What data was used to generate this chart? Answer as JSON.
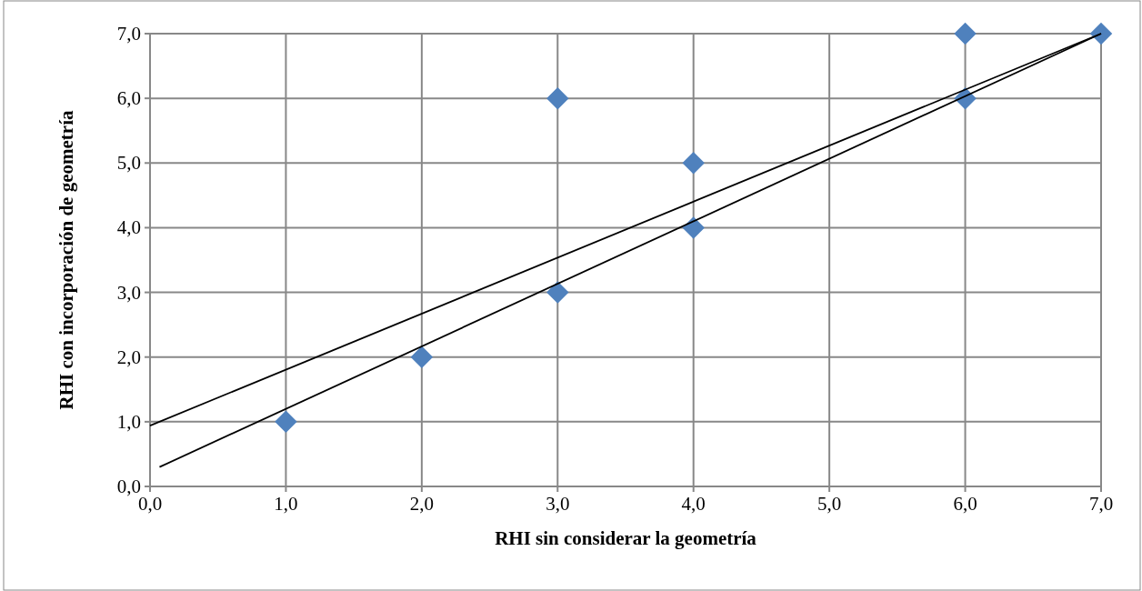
{
  "chart_data": {
    "type": "scatter",
    "xlabel": "RHI sin considerar la geometría",
    "ylabel": "RHI con incorporación de geometría",
    "xlim": [
      0,
      7
    ],
    "ylim": [
      0,
      7
    ],
    "xticks": [
      {
        "value": 0,
        "label": "0,0"
      },
      {
        "value": 1,
        "label": "1,0"
      },
      {
        "value": 2,
        "label": "2,0"
      },
      {
        "value": 3,
        "label": "3,0"
      },
      {
        "value": 4,
        "label": "4,0"
      },
      {
        "value": 5,
        "label": "5,0"
      },
      {
        "value": 6,
        "label": "6,0"
      },
      {
        "value": 7,
        "label": "7,0"
      }
    ],
    "yticks": [
      {
        "value": 0,
        "label": "0,0"
      },
      {
        "value": 1,
        "label": "1,0"
      },
      {
        "value": 2,
        "label": "2,0"
      },
      {
        "value": 3,
        "label": "3,0"
      },
      {
        "value": 4,
        "label": "4,0"
      },
      {
        "value": 5,
        "label": "5,0"
      },
      {
        "value": 6,
        "label": "6,0"
      },
      {
        "value": 7,
        "label": "7,0"
      }
    ],
    "grid": true,
    "series": [
      {
        "color": "#4f81bd",
        "marker": "diamond",
        "x": [
          1,
          2,
          3,
          3,
          4,
          4,
          6,
          6,
          7
        ],
        "values": [
          1,
          2,
          3,
          6,
          4,
          5,
          6,
          7,
          7
        ]
      },
      {
        "type": "line",
        "color": "#000000",
        "marker": "none",
        "x": [
          0,
          7
        ],
        "values": [
          0.94,
          7
        ]
      },
      {
        "type": "line",
        "color": "#000000",
        "marker": "none",
        "x": [
          0.07,
          7
        ],
        "values": [
          0.3,
          7
        ]
      }
    ]
  }
}
